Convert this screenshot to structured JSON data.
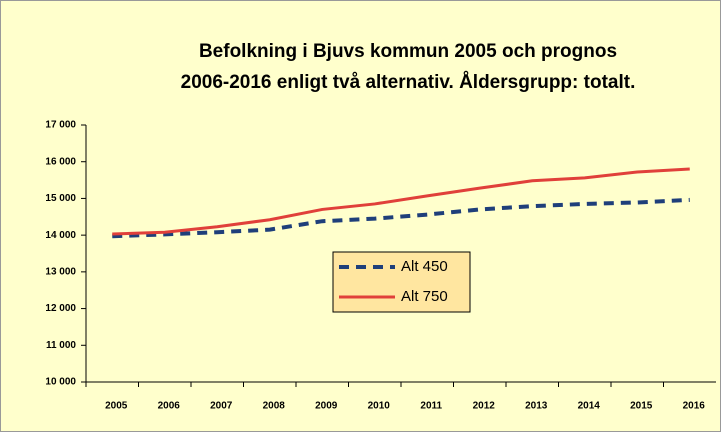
{
  "chart_data": {
    "type": "line",
    "title": "Befolkning i Bjuvs kommun 2005 och prognos",
    "subtitle": "2006-2016 enligt två alternativ. Åldersgrupp: totalt.",
    "categories": [
      "2005",
      "2006",
      "2007",
      "2008",
      "2009",
      "2010",
      "2011",
      "2012",
      "2013",
      "2014",
      "2015",
      "2016"
    ],
    "series": [
      {
        "name": "Alt 450",
        "color": "#1f3f7a",
        "dash": true,
        "values": [
          13970,
          14020,
          14080,
          14150,
          14380,
          14450,
          14560,
          14700,
          14790,
          14850,
          14890,
          14960
        ]
      },
      {
        "name": "Alt 750",
        "color": "#e0403a",
        "dash": false,
        "values": [
          14030,
          14080,
          14230,
          14420,
          14700,
          14850,
          15070,
          15280,
          15480,
          15560,
          15720,
          15800
        ]
      }
    ],
    "ylim": [
      10000,
      17000
    ],
    "yticks": [
      {
        "value": 10000,
        "label": "10 000"
      },
      {
        "value": 11000,
        "label": "11 000"
      },
      {
        "value": 12000,
        "label": "12 000"
      },
      {
        "value": 13000,
        "label": "13 000"
      },
      {
        "value": 14000,
        "label": "14 000"
      },
      {
        "value": 15000,
        "label": "15 000"
      },
      {
        "value": 16000,
        "label": "16 000"
      },
      {
        "value": 17000,
        "label": "17 000"
      }
    ],
    "grid": false,
    "legend": "center",
    "background": "#ffffcc"
  }
}
